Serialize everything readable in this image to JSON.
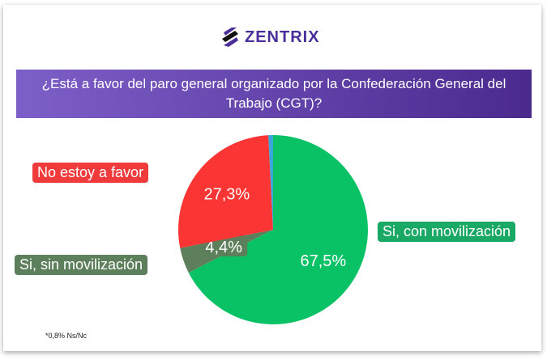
{
  "logo": {
    "text": "ZENTRIX"
  },
  "chart_data": {
    "type": "pie",
    "title": "¿Está a favor del paro general organizado por la Confederación General del Trabajo (CGT)?",
    "slices": [
      {
        "name": "Si, con movilización",
        "value": 67.5,
        "label": "67,5%",
        "color": "#09c266"
      },
      {
        "name": "Si, sin movilización",
        "value": 4.4,
        "label": "4,4%",
        "color": "#5e7f5b"
      },
      {
        "name": "No estoy a favor",
        "value": 27.3,
        "label": "27,3%",
        "color": "#fb3434"
      },
      {
        "name": "Ns/Nc",
        "value": 0.8,
        "label": "",
        "color": "#3aa7d8"
      }
    ],
    "note": "*0,8% Ns/Nc"
  }
}
